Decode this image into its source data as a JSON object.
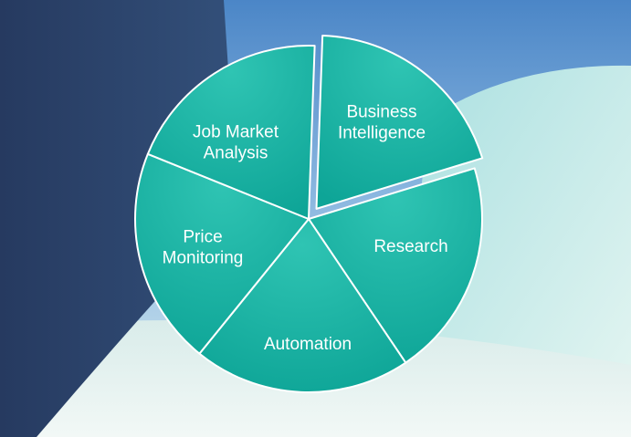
{
  "diagram": {
    "segments": [
      {
        "id": "business-intelligence",
        "lines": [
          "Business",
          "Intelligence"
        ]
      },
      {
        "id": "research",
        "lines": [
          "Research"
        ]
      },
      {
        "id": "automation",
        "lines": [
          "Automation"
        ]
      },
      {
        "id": "price-monitoring",
        "lines": [
          "Price",
          "Monitoring"
        ]
      },
      {
        "id": "job-market-analysis",
        "lines": [
          "Job Market",
          "Analysis"
        ]
      }
    ]
  },
  "colors": {
    "segment_fill": "#15aa9c",
    "segment_highlight": "#2cc1b1",
    "segment_edge": "#ffffff",
    "background_sky": "#6fa3d8",
    "background_dark_panel": "#283f66",
    "background_light_panel": "#cfeee9"
  }
}
